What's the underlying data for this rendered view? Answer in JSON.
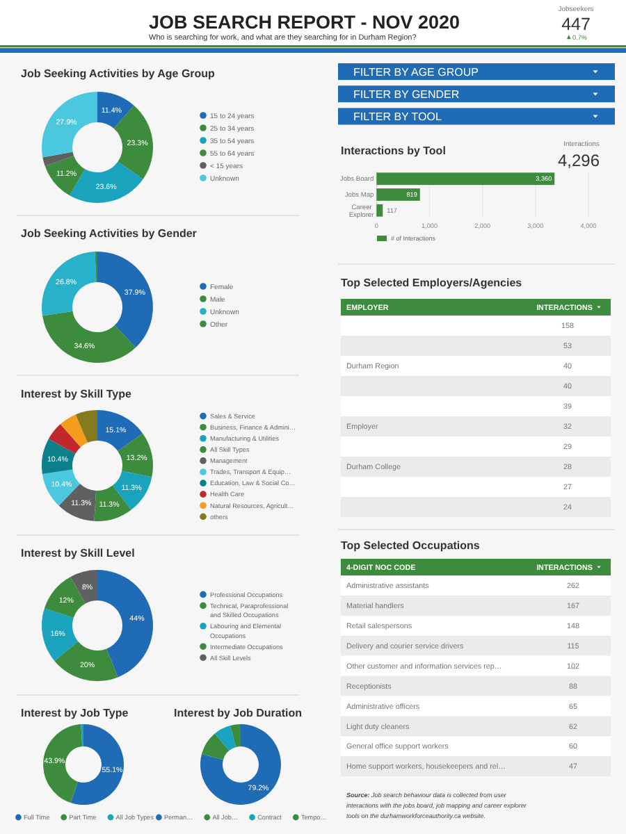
{
  "chart_data": [
    {
      "type": "other",
      "title": "JOB SEARCH REPORT - NOV 2020",
      "subtitle": "Who is searching for work, and what are they searching for in Durham Region?",
      "annotations": [
        "Jobseekers",
        "447",
        "0.7%"
      ]
    },
    {
      "type": "other",
      "annotations": [
        "FILTER BY AGE GROUP",
        "FILTER BY GENDER",
        "FILTER BY TOOL"
      ]
    },
    {
      "type": "donut",
      "title": "Job Seeking Activities by Age Group",
      "categories": [
        "15 to 24 years",
        "25 to 34 years",
        "35 to 54 years",
        "55 to 64 years",
        "< 15 years",
        "Unknown"
      ],
      "values": [
        11.4,
        23.3,
        23.6,
        11.2,
        2.6,
        27.9
      ],
      "colors": [
        "#1f6bb5",
        "#3d8b3d",
        "#1aa3bd",
        "#3d8b3d",
        "#5f6062",
        "#4cc7e0"
      ],
      "value_labels": [
        "11.4%",
        "23.3%",
        "23.6%",
        "11.2%",
        null,
        "27.9%"
      ],
      "legend": "right"
    },
    {
      "type": "donut",
      "title": "Job Seeking Activities by Gender",
      "categories": [
        "Female",
        "Male",
        "Unknown",
        "Other"
      ],
      "values": [
        37.9,
        34.6,
        26.8,
        0.7
      ],
      "colors": [
        "#1f6bb5",
        "#3d8b3d",
        "#27b1cb",
        "#3d8b3d"
      ],
      "value_labels": [
        "37.9%",
        "34.6%",
        "26.8%",
        null
      ],
      "legend": "right"
    },
    {
      "type": "donut",
      "title": "Interest by Skill Type",
      "categories": [
        "Sales & Service",
        "Business, Finance & Admini…",
        "Manufacturing & Utilities",
        "All Skill Types",
        "Management",
        "Trades, Transport & Equip…",
        "Education, Law & Social Co…",
        "Health Care",
        "Natural Resources, Agricult…",
        "others"
      ],
      "values": [
        15.1,
        13.2,
        11.3,
        11.3,
        11.3,
        10.4,
        10.4,
        5.4,
        5.2,
        6.4
      ],
      "colors": [
        "#1f6bb5",
        "#3d8b3d",
        "#1aa3bd",
        "#3d8b3d",
        "#5f6062",
        "#4cc7e0",
        "#0b7f8a",
        "#c0282d",
        "#f39c1e",
        "#857a1e"
      ],
      "value_labels": [
        "15.1%",
        "13.2%",
        "11.3%",
        "11.3%",
        "11.3%",
        "10.4%",
        "10.4%",
        null,
        null,
        null
      ],
      "legend": "right"
    },
    {
      "type": "donut",
      "title": "Interest by Skill Level",
      "categories": [
        "Professional Occupations",
        "Technical, Paraprofessional and Skilled Occupations",
        "Labouring and Elemental Occupations",
        "Intermediate Occupations",
        "All Skill Levels"
      ],
      "values": [
        44,
        20,
        16,
        12,
        8
      ],
      "colors": [
        "#1f6bb5",
        "#3d8b3d",
        "#1aa3bd",
        "#3d8b3d",
        "#5f6062"
      ],
      "value_labels": [
        "44%",
        "20%",
        "16%",
        "12%",
        "8%"
      ],
      "legend": "right"
    },
    {
      "type": "donut",
      "title": "Interest by Job Type",
      "categories": [
        "Full Time",
        "Part Time",
        "All Job Types"
      ],
      "values": [
        55.1,
        43.9,
        1.0
      ],
      "colors": [
        "#1f6bb5",
        "#3d8b3d",
        "#1aa3bd"
      ],
      "value_labels": [
        "55.1%",
        "43.9%",
        null
      ],
      "legend": "bottom"
    },
    {
      "type": "donut",
      "title": "Interest by Job Duration",
      "categories": [
        "Perman…",
        "All Job…",
        "Contract",
        "Tempo…"
      ],
      "values": [
        79.2,
        9.7,
        6.9,
        4.2
      ],
      "colors": [
        "#1f6bb5",
        "#3d8b3d",
        "#1aa3bd",
        "#3d8b3d"
      ],
      "value_labels": [
        "79.2%",
        null,
        null,
        null
      ],
      "legend": "bottom"
    },
    {
      "type": "bar",
      "orientation": "horizontal",
      "title": "Interactions by Tool",
      "categories": [
        "Jobs Board",
        "Jobs Map",
        "Career Explorer"
      ],
      "series": [
        {
          "name": "# of Interactions",
          "color": "#3d8b3d",
          "values": [
            3360,
            819,
            117
          ],
          "value_labels": [
            "3,360",
            "819",
            "117"
          ]
        }
      ],
      "xlim": [
        0,
        4000
      ],
      "xticks": [
        0,
        {
          "value": 1000,
          "label": "1,000"
        },
        {
          "value": 2000,
          "label": "2,000"
        },
        {
          "value": 3000,
          "label": "3,000"
        },
        {
          "value": 4000,
          "label": "4,000"
        }
      ],
      "grid": "x",
      "legend": "bottom",
      "annotations": [
        "Interactions",
        "4,296"
      ]
    },
    {
      "type": "other",
      "title": "Top Selected Employers/Agencies",
      "xlabel": "EMPLOYER",
      "ylabel": "INTERACTIONS",
      "categories": [
        null,
        null,
        "Durham Region",
        null,
        null,
        "Employer",
        null,
        "Durham College",
        null,
        null
      ],
      "values": [
        158,
        53,
        40,
        40,
        39,
        32,
        29,
        28,
        27,
        24
      ],
      "data_labels": true
    },
    {
      "type": "other",
      "title": "Top Selected Occupations",
      "xlabel": "4-DIGIT NOC CODE",
      "ylabel": "INTERACTIONS",
      "categories": [
        "Administrative assistants",
        "Material handlers",
        "Retail salespersons",
        "Delivery and courier service drivers",
        "Other customer and information services rep…",
        "Receptionists",
        "Administrative officers",
        "Light duty cleaners",
        "General office support workers",
        "Home support workers, housekeepers and rel…"
      ],
      "values": [
        262,
        167,
        148,
        115,
        102,
        88,
        65,
        62,
        60,
        47
      ],
      "data_labels": true,
      "annotations": [
        "Source: Job search behaviour data is collected from user interactions with the jobs board, job mapping and career explorer tools on the durhamworkforceauthority.ca website."
      ]
    }
  ]
}
